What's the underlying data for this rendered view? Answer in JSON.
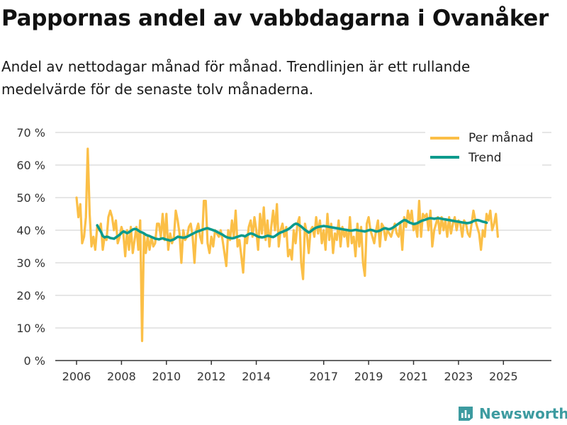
{
  "header": {
    "title": "Pappornas andel av vabbdagarna i Ovanåker",
    "subtitle": "Andel av nettodagar månad för månad. Trendlinjen är ett rullande medelvärde för de senaste tolv månaderna."
  },
  "brand": {
    "name": "Newsworthy",
    "color": "#3d9ba0"
  },
  "colors": {
    "monthly": "#fbbf47",
    "trend": "#0a9a8c",
    "grid": "#dddddd",
    "axis": "#333333"
  },
  "chart_data": {
    "type": "line",
    "title": "Pappornas andel av vabbdagarna i Ovanåker",
    "xlabel": "",
    "ylabel": "",
    "ylim": [
      0,
      70
    ],
    "y_ticks": [
      0,
      10,
      20,
      30,
      40,
      50,
      60,
      70
    ],
    "y_tick_labels": [
      "0 %",
      "10 %",
      "20 %",
      "30 %",
      "40 %",
      "50 %",
      "60 %",
      "70 %"
    ],
    "x_ticks": [
      2006,
      2008,
      2010,
      2012,
      2014,
      2017,
      2019,
      2021,
      2023,
      2025
    ],
    "x_tick_labels": [
      "2006",
      "2008",
      "2010",
      "2012",
      "2014",
      "2017",
      "2019",
      "2021",
      "2023",
      "2025"
    ],
    "x_start_year": 2006,
    "grid": true,
    "legend": {
      "position": "top-right",
      "entries": [
        "Per månad",
        "Trend"
      ]
    },
    "series": [
      {
        "name": "Per månad",
        "start_year": 2006,
        "frequency": "monthly",
        "values": [
          50,
          44,
          48,
          36,
          38,
          44,
          65,
          45,
          35,
          38,
          34,
          41,
          40,
          42,
          34,
          38,
          37,
          44,
          46,
          44,
          40,
          43,
          36,
          38,
          41,
          39,
          32,
          40,
          34,
          41,
          33,
          37,
          41,
          34,
          43,
          6,
          39,
          33,
          38,
          34,
          38,
          35,
          36,
          42,
          42,
          38,
          45,
          37,
          45,
          34,
          39,
          36,
          38,
          46,
          43,
          39,
          30,
          40,
          37,
          38,
          41,
          42,
          38,
          30,
          40,
          42,
          38,
          36,
          49,
          49,
          36,
          33,
          38,
          35,
          40,
          39,
          38,
          40,
          37,
          33,
          29,
          40,
          37,
          43,
          38,
          46,
          35,
          37,
          32,
          27,
          38,
          36,
          41,
          43,
          38,
          44,
          40,
          34,
          45,
          39,
          47,
          37,
          43,
          35,
          41,
          46,
          40,
          48,
          35,
          40,
          42,
          38,
          41,
          32,
          34,
          31,
          40,
          36,
          42,
          44,
          30,
          25,
          42,
          39,
          33,
          40,
          41,
          38,
          44,
          39,
          43,
          36,
          40,
          34,
          45,
          37,
          42,
          33,
          39,
          37,
          43,
          35,
          41,
          38,
          40,
          35,
          44,
          36,
          38,
          32,
          42,
          35,
          41,
          30,
          26,
          42,
          44,
          40,
          38,
          36,
          40,
          43,
          35,
          42,
          41,
          37,
          40,
          39,
          38,
          40,
          42,
          39,
          38,
          42,
          34,
          44,
          41,
          46,
          43,
          46,
          40,
          42,
          38,
          49,
          38,
          45,
          44,
          45,
          40,
          46,
          35,
          40,
          42,
          44,
          39,
          44,
          40,
          43,
          38,
          44,
          39,
          42,
          44,
          40,
          43,
          42,
          38,
          43,
          42,
          39,
          38,
          42,
          46,
          43,
          41,
          39,
          34,
          40,
          38,
          45,
          43,
          46,
          40,
          42,
          45,
          38
        ]
      },
      {
        "name": "Trend",
        "start_year": 2006.92,
        "frequency": "monthly",
        "values": [
          41.5,
          40.5,
          39.5,
          38.2,
          37.8,
          38,
          37.9,
          37.6,
          37.5,
          37.4,
          37.8,
          38.2,
          38.6,
          39.2,
          39.6,
          39.4,
          39.1,
          39.4,
          39.8,
          40.2,
          40.4,
          40.3,
          39.9,
          39.5,
          39.3,
          39,
          38.6,
          38.4,
          38.2,
          37.9,
          37.7,
          37.4,
          37.3,
          37.2,
          37.4,
          37.5,
          37.3,
          37.1,
          37,
          36.8,
          37,
          37.2,
          37.6,
          38,
          37.9,
          37.8,
          37.7,
          37.8,
          38,
          38.3,
          38.6,
          38.9,
          39.2,
          39.5,
          39.7,
          39.9,
          40.1,
          40.3,
          40.5,
          40.6,
          40.4,
          40.2,
          40,
          39.8,
          39.5,
          39.2,
          38.9,
          38.6,
          38.2,
          37.9,
          37.7,
          37.6,
          37.5,
          37.6,
          37.8,
          38,
          38.2,
          38.4,
          38.3,
          38.1,
          38.5,
          38.8,
          39,
          38.9,
          38.6,
          38.3,
          38,
          37.9,
          37.8,
          37.9,
          38.1,
          38.3,
          38.2,
          38,
          37.9,
          38.2,
          38.6,
          39,
          39.3,
          39.5,
          39.8,
          40,
          40.3,
          40.7,
          41.2,
          41.7,
          42,
          41.9,
          41.5,
          41.1,
          40.6,
          40.1,
          39.7,
          39.3,
          39.6,
          40.1,
          40.5,
          40.8,
          41,
          41.1,
          41.2,
          41.3,
          41.2,
          41.1,
          41,
          40.9,
          40.8,
          40.7,
          40.6,
          40.5,
          40.4,
          40.3,
          40.2,
          40.1,
          40,
          39.9,
          39.9,
          40,
          40.1,
          40,
          39.9,
          39.8,
          39.7,
          39.6,
          39.8,
          40,
          40.1,
          40,
          39.8,
          39.6,
          39.7,
          39.9,
          40.2,
          40.5,
          40.6,
          40.4,
          40.3,
          40.5,
          40.8,
          41.2,
          41.6,
          42,
          42.4,
          42.8,
          43.1,
          43,
          42.6,
          42.3,
          42.1,
          41.9,
          42,
          42.2,
          42.5,
          42.8,
          43,
          43.2,
          43.4,
          43.6,
          43.7,
          43.6,
          43.5,
          43.6,
          43.7,
          43.6,
          43.5,
          43.4,
          43.3,
          43.2,
          43.1,
          43,
          42.9,
          42.8,
          42.7,
          42.6,
          42.5,
          42.4,
          42.3,
          42.2,
          42.2,
          42.3,
          42.5,
          42.8,
          43,
          43.1,
          43,
          42.8,
          42.6,
          42.5,
          42.3
        ]
      }
    ]
  }
}
